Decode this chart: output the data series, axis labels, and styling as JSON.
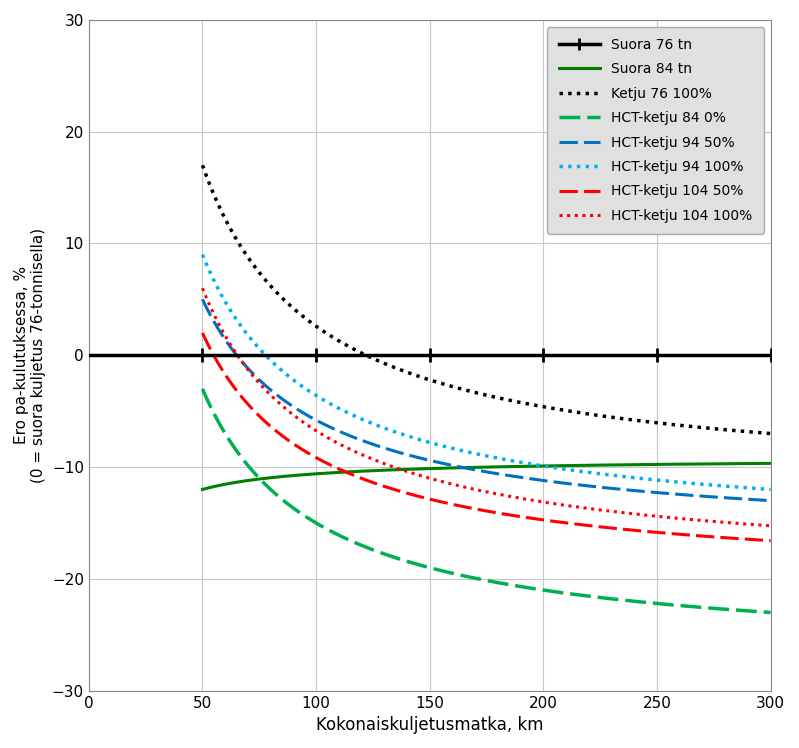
{
  "xlabel": "Kokonaiskuljetusmatka, km",
  "ylabel": "Ero pa-kulutuksessa, %\n(0 = suora kuljetus 76-tonnisella)",
  "xlim": [
    0,
    300
  ],
  "ylim": [
    -30,
    30
  ],
  "xticks": [
    0,
    50,
    100,
    150,
    200,
    250,
    300
  ],
  "yticks": [
    -30,
    -20,
    -10,
    0,
    10,
    20,
    30
  ],
  "series": [
    {
      "label": "Suora 76 tn",
      "color": "#000000",
      "linestyle": "solid",
      "linewidth": 2.5,
      "formula": "suora76"
    },
    {
      "label": "Suora 84 tn",
      "color": "#008000",
      "linestyle": "solid",
      "linewidth": 2.2,
      "formula": "suora84"
    },
    {
      "label": "Ketju 76 100%",
      "color": "#000000",
      "linestyle": "dotted",
      "linewidth": 2.5,
      "formula": "ketju76"
    },
    {
      "label": "HCT-ketju 84 0%",
      "color": "#00b050",
      "linestyle": "dashed",
      "linewidth": 2.5,
      "formula": "hct84_0"
    },
    {
      "label": "HCT-ketju 94 50%",
      "color": "#0070c0",
      "linestyle": "dashed",
      "linewidth": 2.2,
      "formula": "hct94_50"
    },
    {
      "label": "HCT-ketju 94 100%",
      "color": "#00b0f0",
      "linestyle": "dotted",
      "linewidth": 2.5,
      "formula": "hct94_100"
    },
    {
      "label": "HCT-ketju 104 50%",
      "color": "#ff0000",
      "linestyle": "dashed",
      "linewidth": 2.2,
      "formula": "hct104_50"
    },
    {
      "label": "HCT-ketju 104 100%",
      "color": "#ff0000",
      "linestyle": "dotted",
      "linewidth": 2.2,
      "formula": "hct104_100"
    }
  ],
  "background_color": "#ffffff",
  "legend_bg": "#e0e0e0",
  "grid_color": "#c8c8c8"
}
